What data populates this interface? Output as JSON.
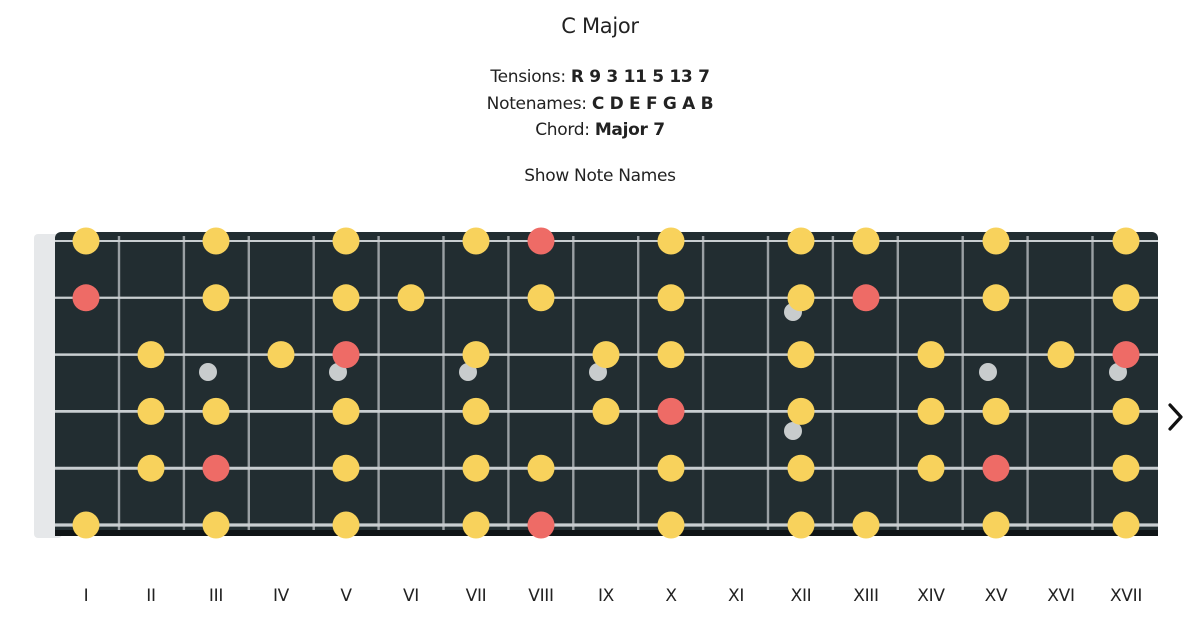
{
  "scale": {
    "title": "C Major"
  },
  "info": {
    "tensions_label": "Tensions:",
    "tensions_value": "R 9 3 11 5 13 7",
    "notenames_label": "Notenames:",
    "notenames_value": "C D E F G A B",
    "chord_label": "Chord:",
    "chord_value": "Major 7"
  },
  "controls": {
    "show_note_names": "Show Note Names",
    "next_icon": "chevron-right-icon"
  },
  "colors": {
    "board": "#222d31",
    "fret_wire": "#9aa0a4",
    "string": "#c9ced1",
    "note": "#f8d25c",
    "root": "#ee6b66",
    "inlay": "#c8cccd"
  },
  "fretboard": {
    "frets": [
      "I",
      "II",
      "III",
      "IV",
      "V",
      "VI",
      "VII",
      "VIII",
      "IX",
      "X",
      "XI",
      "XII",
      "XIII",
      "XIV",
      "XV",
      "XVI",
      "XVII"
    ],
    "string_count": 6,
    "inlay_frets": [
      3,
      5,
      7,
      9,
      15,
      17
    ],
    "double_inlay_frets": [
      12
    ],
    "notes": [
      {
        "string": 1,
        "frets": [
          1,
          3,
          5,
          7,
          10,
          12,
          13,
          15,
          17
        ],
        "roots": [
          8
        ]
      },
      {
        "string": 2,
        "frets": [
          3,
          5,
          6,
          8,
          10,
          12,
          15,
          17
        ],
        "roots": [
          1,
          13
        ]
      },
      {
        "string": 3,
        "frets": [
          2,
          4,
          7,
          9,
          10,
          12,
          14,
          16
        ],
        "roots": [
          5,
          17
        ]
      },
      {
        "string": 4,
        "frets": [
          2,
          3,
          5,
          7,
          9,
          12,
          14,
          15,
          17
        ],
        "roots": [
          10
        ]
      },
      {
        "string": 5,
        "frets": [
          2,
          5,
          7,
          8,
          10,
          12,
          14,
          17
        ],
        "roots": [
          3,
          15
        ]
      },
      {
        "string": 6,
        "frets": [
          1,
          3,
          5,
          7,
          10,
          12,
          13,
          15,
          17
        ],
        "roots": [
          8
        ]
      }
    ]
  }
}
